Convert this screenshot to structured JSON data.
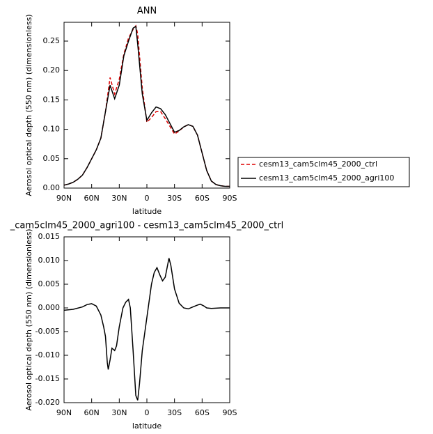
{
  "chart_data": [
    {
      "type": "line",
      "title": "ANN",
      "xlabel": "latitude",
      "ylabel": "Aerosol optical depth (550 nm) (dimensionless)",
      "x": [
        90,
        85,
        80,
        75,
        70,
        65,
        60,
        55,
        50,
        45,
        40,
        35,
        30,
        25,
        20,
        15,
        12,
        10,
        5,
        0,
        -5,
        -10,
        -15,
        -20,
        -25,
        -30,
        -35,
        -40,
        -45,
        -50,
        -55,
        -60,
        -65,
        -70,
        -75,
        -80,
        -85,
        -90
      ],
      "series": [
        {
          "name": "cesm13_cam5clm45_2000_ctrl",
          "color": "#dd0000",
          "dashed": true,
          "values": [
            0.005,
            0.007,
            0.01,
            0.015,
            0.022,
            0.035,
            0.05,
            0.065,
            0.085,
            0.13,
            0.188,
            0.16,
            0.185,
            0.228,
            0.255,
            0.27,
            0.276,
            0.262,
            0.17,
            0.112,
            0.12,
            0.13,
            0.13,
            0.118,
            0.105,
            0.092,
            0.097,
            0.104,
            0.108,
            0.105,
            0.09,
            0.06,
            0.03,
            0.012,
            0.006,
            0.004,
            0.003,
            0.003
          ]
        },
        {
          "name": "cesm13_cam5clm45_2000_agri100",
          "color": "#000000",
          "dashed": false,
          "values": [
            0.005,
            0.007,
            0.01,
            0.015,
            0.022,
            0.035,
            0.05,
            0.065,
            0.085,
            0.13,
            0.175,
            0.152,
            0.175,
            0.225,
            0.25,
            0.272,
            0.275,
            0.245,
            0.16,
            0.115,
            0.128,
            0.138,
            0.135,
            0.125,
            0.11,
            0.095,
            0.098,
            0.104,
            0.108,
            0.105,
            0.09,
            0.06,
            0.03,
            0.012,
            0.006,
            0.004,
            0.003,
            0.003
          ]
        }
      ],
      "xlim": [
        90,
        -90
      ],
      "xticks": [
        {
          "value": 90,
          "label": "90N"
        },
        {
          "value": 60,
          "label": "60N"
        },
        {
          "value": 30,
          "label": "30N"
        },
        0,
        {
          "value": -30,
          "label": "30S"
        },
        {
          "value": -60,
          "label": "60S"
        },
        {
          "value": -90,
          "label": "90S"
        }
      ],
      "ylim": [
        0,
        0.282
      ],
      "yticks": [
        {
          "value": 0,
          "label": "0.00"
        },
        0.05,
        {
          "value": 0.1,
          "label": "0.10"
        },
        0.15,
        {
          "value": 0.2,
          "label": "0.20"
        },
        0.25
      ],
      "legend": "outside-right"
    },
    {
      "type": "line",
      "title": "_cam5clm45_2000_agri100 - cesm13_cam5clm45_2000_ctrl",
      "xlabel": "latitude",
      "ylabel": "Aerosol optical depth (550 nm) (dimensionless)",
      "x": [
        90,
        80,
        70,
        65,
        60,
        55,
        50,
        47,
        45,
        43,
        42,
        40,
        38,
        35,
        33,
        30,
        26,
        23,
        20,
        18,
        15,
        12,
        10,
        8,
        5,
        0,
        -5,
        -8,
        -11,
        -14,
        -17,
        -20,
        -24,
        -26,
        -30,
        -35,
        -40,
        -45,
        -50,
        -55,
        -58,
        -62,
        -65,
        -70,
        -80,
        -90
      ],
      "series": [
        {
          "color": "#000000",
          "dashed": false,
          "values": [
            -0.0005,
            -0.0003,
            0.0002,
            0.0007,
            0.0009,
            0.0004,
            -0.0015,
            -0.004,
            -0.006,
            -0.0115,
            -0.013,
            -0.011,
            -0.0085,
            -0.009,
            -0.008,
            -0.004,
            0.0,
            0.0012,
            0.0018,
            0.0,
            -0.009,
            -0.0185,
            -0.0195,
            -0.016,
            -0.009,
            -0.002,
            0.005,
            0.0075,
            0.0085,
            0.007,
            0.0057,
            0.0065,
            0.0105,
            0.009,
            0.004,
            0.001,
            0.0,
            -0.0002,
            0.0002,
            0.0006,
            0.0008,
            0.0004,
            0.0,
            -0.0001,
            0.0,
            0.0
          ]
        }
      ],
      "xlim": [
        90,
        -90
      ],
      "xticks": [
        {
          "value": 90,
          "label": "90N"
        },
        {
          "value": 60,
          "label": "60N"
        },
        {
          "value": 30,
          "label": "30N"
        },
        0,
        {
          "value": -30,
          "label": "30S"
        },
        {
          "value": -60,
          "label": "60S"
        },
        {
          "value": -90,
          "label": "90S"
        }
      ],
      "ylim": [
        -0.02,
        0.015
      ],
      "yticks": [
        {
          "value": -0.02,
          "label": "-0.020"
        },
        -0.015,
        {
          "value": -0.01,
          "label": "-0.010"
        },
        -0.005,
        {
          "value": 0,
          "label": "0.000"
        },
        0.005,
        {
          "value": 0.01,
          "label": "0.010"
        },
        0.015
      ]
    }
  ]
}
